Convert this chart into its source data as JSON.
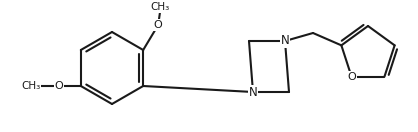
{
  "bg_color": "#ffffff",
  "line_color": "#1a1a1a",
  "line_width": 1.5,
  "figsize": [
    4.18,
    1.32
  ],
  "dpi": 100,
  "xlim": [
    0,
    418
  ],
  "ylim": [
    0,
    132
  ]
}
